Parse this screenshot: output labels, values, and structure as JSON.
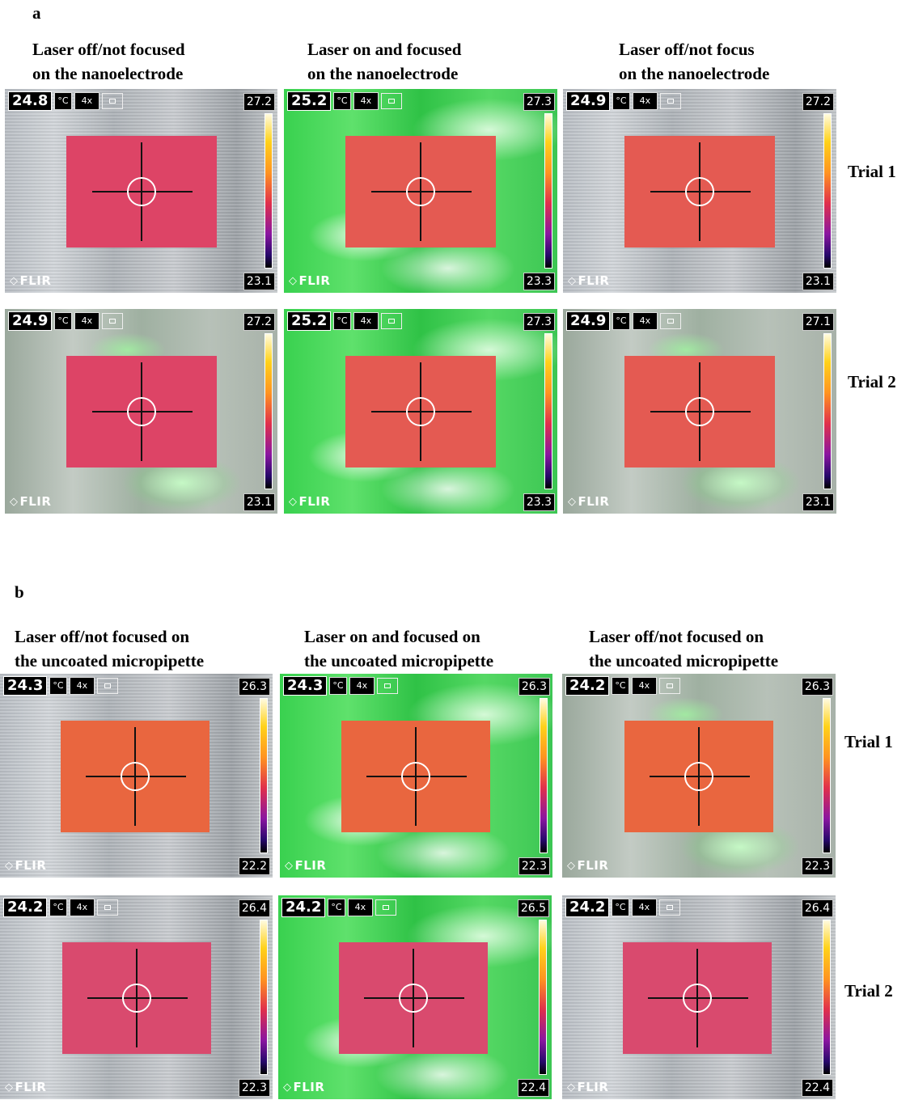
{
  "panels": [
    {
      "letter": "a",
      "columns": [
        [
          "Laser off/not focused",
          "on the nanoelectrode"
        ],
        [
          "Laser on and focused",
          "on the nanoelectrode"
        ],
        [
          "Laser off/not focus",
          "on the nanoelectrode"
        ]
      ],
      "trials": [
        "Trial 1",
        "Trial 2"
      ],
      "frames": [
        {
          "temp": "24.8",
          "max": "27.2",
          "min": "23.1"
        },
        {
          "temp": "25.2",
          "max": "27.3",
          "min": "23.3"
        },
        {
          "temp": "24.9",
          "max": "27.2",
          "min": "23.1"
        },
        {
          "temp": "24.9",
          "max": "27.2",
          "min": "23.1"
        },
        {
          "temp": "25.2",
          "max": "27.3",
          "min": "23.3"
        },
        {
          "temp": "24.9",
          "max": "27.1",
          "min": "23.1"
        }
      ]
    },
    {
      "letter": "b",
      "columns": [
        [
          "Laser off/not focused on",
          "the uncoated micropipette"
        ],
        [
          "Laser on and focused on",
          "the uncoated micropipette"
        ],
        [
          "Laser off/not focused on",
          "the uncoated micropipette"
        ]
      ],
      "trials": [
        "Trial 1",
        "Trial 2"
      ],
      "frames": [
        {
          "temp": "24.3",
          "max": "26.3",
          "min": "22.2"
        },
        {
          "temp": "24.3",
          "max": "26.3",
          "min": "22.3"
        },
        {
          "temp": "24.2",
          "max": "26.3",
          "min": "22.3"
        },
        {
          "temp": "24.2",
          "max": "26.4",
          "min": "22.3"
        },
        {
          "temp": "24.2",
          "max": "26.5",
          "min": "22.4"
        },
        {
          "temp": "24.2",
          "max": "26.4",
          "min": "22.4"
        }
      ]
    }
  ],
  "camera": {
    "unit": "°C",
    "zoom": "4x",
    "brand": "FLIR",
    "icons": [
      "camera-mode-icon",
      "flir-logo-icon"
    ]
  },
  "colors": {
    "colorbar_top": "#fffbe0",
    "colorbar_bottom": "#000000",
    "roi_pink": "#dd4466",
    "roi_orange": "#e9663f",
    "laser_green": "#39d14f"
  }
}
